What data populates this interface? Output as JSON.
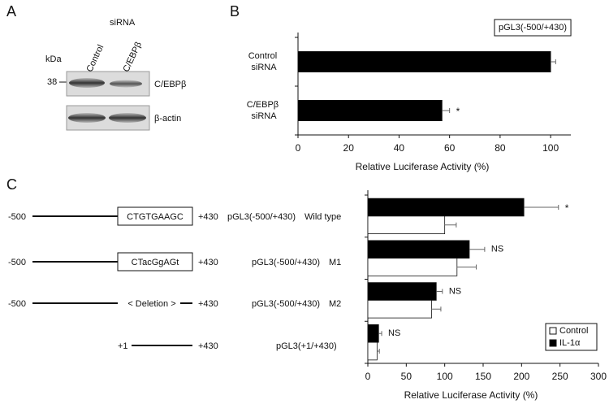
{
  "panel_labels": [
    "A",
    "B",
    "C"
  ],
  "blot": {
    "group_label": "siRNA",
    "lanes": [
      "Control",
      "C/EBPβ"
    ],
    "unit_label": "kDa",
    "marker": "38",
    "bands": [
      "C/EBPβ",
      "β-actin"
    ]
  },
  "constructs": [
    {
      "start": "-500",
      "box": "CTGTGAAGC",
      "end": "+430",
      "name": "pGL3(-500/+430)",
      "variant": "Wild type"
    },
    {
      "start": "-500",
      "box": "CTacGgAGt",
      "end": "+430",
      "name": "pGL3(-500/+430)",
      "variant": "M1"
    },
    {
      "start": "-500",
      "box": "< Deletion >",
      "end": "+430",
      "name": "pGL3(-500/+430)",
      "variant": "M2"
    },
    {
      "start": "+1",
      "end": "+430",
      "name": "pGL3(+1/+430)"
    }
  ],
  "chart_data": [
    {
      "type": "bar",
      "orientation": "horizontal",
      "title": "pGL3(-500/+430)",
      "categories": [
        "Control siRNA",
        "C/EBPβ siRNA"
      ],
      "values": [
        100,
        57
      ],
      "errors": [
        2,
        3
      ],
      "annotations": [
        null,
        "*"
      ],
      "color": "#000000",
      "xlabel": "Relative Luciferase Activity (%)",
      "xlim": [
        0,
        108
      ],
      "xticks": [
        0,
        20,
        40,
        60,
        80,
        100
      ]
    },
    {
      "type": "bar",
      "orientation": "horizontal",
      "categories": [
        null,
        null,
        null,
        null
      ],
      "series": [
        {
          "name": "IL-1α",
          "color": "#000000",
          "values": [
            203,
            132,
            89,
            14
          ],
          "errors": [
            45,
            20,
            8,
            4
          ],
          "annotations": [
            "*",
            "NS",
            "NS",
            "NS"
          ]
        },
        {
          "name": "Control",
          "color": "#ffffff",
          "values": [
            100,
            116,
            83,
            12
          ],
          "errors": [
            15,
            25,
            12,
            3
          ]
        }
      ],
      "xlabel": "Relative Luciferase Activity (%)",
      "xlim": [
        0,
        300
      ],
      "xticks": [
        0,
        50,
        100,
        150,
        200,
        250,
        300
      ],
      "legend": "lower right"
    }
  ]
}
